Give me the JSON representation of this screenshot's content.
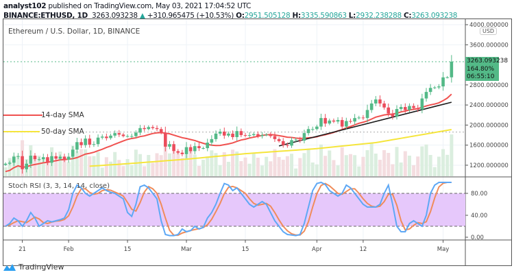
{
  "header": {
    "author": "analyst102",
    "published": "published on TradingView.com, May 03, 2021 17:04:52 UTC",
    "symbol": "BINANCE:ETHUSD, 1D",
    "last": "3263.093238",
    "change": "+310.965475 (+10.53%)",
    "o_label": "O:",
    "o": "2951.505128",
    "h_label": "H:",
    "h": "3335.590863",
    "l_label": "L:",
    "l": "2932.238288",
    "c_label": "C:",
    "c": "3263.093238"
  },
  "legend": "Ethereum / U.S. Dollar, 1D, BINANCE",
  "ma_labels": {
    "sma14": "14-day SMA",
    "sma50": "50-day SMA"
  },
  "currency": "USD",
  "price_label": {
    "price": "3263.093238",
    "pct": "164.80%",
    "countdown": "06:55:10"
  },
  "stoch_label": "Stoch RSI (3, 3, 14, 14, close)",
  "brand": "TradingView",
  "colors": {
    "up": "#53b987",
    "down": "#eb4d5c",
    "sma14": "#f0514f",
    "sma50": "#f5e53b",
    "k": "#5ea8f5",
    "d": "#f08c5a",
    "band": "#e6c8fb",
    "trend": "#1b1b1b"
  },
  "chart_data": [
    {
      "type": "candlestick",
      "title": "Ethereum / U.S. Dollar, 1D, BINANCE",
      "start_date": "2021-01-17",
      "price_ticks": [
        1200,
        1600,
        2000,
        2400,
        2800,
        3600,
        4000
      ],
      "price_tick_labels": [
        "1200.000000",
        "1600.000000",
        "2000.000000",
        "2400.000000",
        "2800.000000",
        "3600.000000",
        "4000.000000"
      ],
      "ylim": [
        1020,
        4000
      ],
      "x_ticks": [
        {
          "day": 4,
          "label": "21"
        },
        {
          "day": 15,
          "label": "Feb"
        },
        {
          "day": 29,
          "label": "15"
        },
        {
          "day": 43,
          "label": "Mar"
        },
        {
          "day": 57,
          "label": "15"
        },
        {
          "day": 74,
          "label": "Apr"
        },
        {
          "day": 85,
          "label": "12"
        },
        {
          "day": 104,
          "label": "May"
        }
      ],
      "close": [
        1230,
        1250,
        1370,
        1380,
        1120,
        1230,
        1390,
        1320,
        1320,
        1360,
        1250,
        1380,
        1330,
        1370,
        1310,
        1370,
        1510,
        1660,
        1600,
        1730,
        1610,
        1620,
        1750,
        1770,
        1740,
        1790,
        1840,
        1810,
        1780,
        1780,
        1780,
        1850,
        1940,
        1920,
        1960,
        1940,
        1920,
        1850,
        1570,
        1620,
        1480,
        1450,
        1420,
        1560,
        1480,
        1580,
        1540,
        1540,
        1650,
        1720,
        1830,
        1870,
        1790,
        1830,
        1760,
        1880,
        1800,
        1790,
        1800,
        1820,
        1780,
        1800,
        1810,
        1780,
        1720,
        1680,
        1600,
        1590,
        1700,
        1710,
        1690,
        1840,
        1920,
        1920,
        1970,
        2140,
        2030,
        2090,
        2070,
        2100,
        1970,
        2080,
        2070,
        2140,
        2150,
        2140,
        2300,
        2430,
        2510,
        2430,
        2350,
        2230,
        2170,
        2320,
        2360,
        2300,
        2380,
        2340,
        2310,
        2530,
        2660,
        2740,
        2750,
        2770,
        2950,
        2951.5,
        3263.09
      ],
      "sma50_anchors": [
        {
          "day": 20,
          "value": 1180
        },
        {
          "day": 29,
          "value": 1230
        },
        {
          "day": 43,
          "value": 1320
        },
        {
          "day": 57,
          "value": 1430
        },
        {
          "day": 74,
          "value": 1530
        },
        {
          "day": 88,
          "value": 1650
        },
        {
          "day": 106,
          "value": 1910
        }
      ],
      "trendline": [
        {
          "day": 65,
          "value": 1584
        },
        {
          "day": 106,
          "value": 2455
        }
      ],
      "hlines": [
        {
          "value": 3263.09,
          "style": "green-dotted"
        },
        {
          "value": 1860,
          "style": "gray-dotted"
        }
      ]
    },
    {
      "type": "line",
      "title": "Stoch RSI (3, 3, 14, 14, close)",
      "ylim": [
        0,
        100
      ],
      "y_ticks": [
        0,
        40,
        80
      ],
      "y_tick_labels": [
        "0.00",
        "40.00",
        "80.00"
      ],
      "band": [
        20,
        80
      ],
      "k": [
        20,
        25,
        35,
        30,
        20,
        30,
        45,
        35,
        20,
        25,
        30,
        28,
        30,
        32,
        35,
        50,
        80,
        95,
        90,
        80,
        75,
        80,
        85,
        90,
        85,
        82,
        80,
        75,
        70,
        45,
        38,
        60,
        92,
        95,
        90,
        80,
        70,
        30,
        5,
        3,
        3,
        5,
        15,
        10,
        12,
        20,
        15,
        18,
        35,
        45,
        60,
        80,
        98,
        95,
        85,
        90,
        80,
        70,
        60,
        55,
        60,
        65,
        60,
        45,
        30,
        20,
        10,
        5,
        4,
        3,
        5,
        25,
        55,
        85,
        98,
        100,
        96,
        85,
        80,
        75,
        80,
        95,
        90,
        80,
        70,
        60,
        55,
        55,
        55,
        60,
        80,
        95,
        60,
        20,
        10,
        10,
        25,
        30,
        25,
        20,
        40,
        80,
        95,
        100,
        100,
        100,
        100
      ]
    }
  ]
}
